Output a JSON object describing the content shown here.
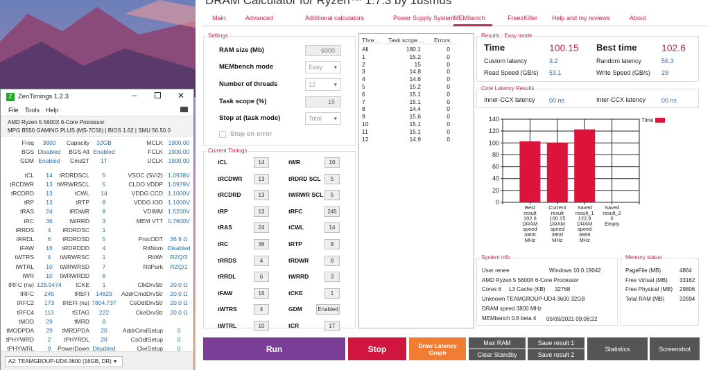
{
  "dram": {
    "title": "DRAM Calculator for Ryzen™ 1.7.3 by 1usmus",
    "tabs": [
      "Main",
      "Advanced",
      "Additional calculators",
      "Power Supply System",
      "MEMbench",
      "FreezKiller",
      "Help and my reviews",
      "About"
    ],
    "active_tab": "MEMbench",
    "settings": {
      "legend": "Settings",
      "ram_size_label": "RAM size (Mb)",
      "ram_size": "6000",
      "mode_label": "MEMbench mode",
      "mode": "Easy",
      "threads_label": "Number of threads",
      "threads": "12",
      "scope_label": "Task scope (%)",
      "scope": "15",
      "stop_label": "Stop at (task mode)",
      "stop": "Total",
      "stop_on_error": "Stop on error",
      "stop_on_error_checked": false
    },
    "timings": {
      "legend": "Current Timings",
      "left": [
        [
          "tCL",
          "14"
        ],
        [
          "tRCDWR",
          "13"
        ],
        [
          "tRCDRD",
          "13"
        ],
        [
          "tRP",
          "13"
        ],
        [
          "tRAS",
          "24"
        ],
        [
          "tRC",
          "36"
        ],
        [
          "tRRDS",
          "4"
        ],
        [
          "tRRDL",
          "6"
        ],
        [
          "tFAW",
          "16"
        ],
        [
          "tWTRS",
          "4"
        ],
        [
          "tWTRL",
          "10"
        ]
      ],
      "right": [
        [
          "tWR",
          "10"
        ],
        [
          "tRDRD SCL",
          "5"
        ],
        [
          "tWRWR SCL",
          "5"
        ],
        [
          "tRFC",
          "245"
        ],
        [
          "tCWL",
          "14"
        ],
        [
          "tRTP",
          "8"
        ],
        [
          "tRDWR",
          "8"
        ],
        [
          "tWRRD",
          "3"
        ],
        [
          "tCKE",
          "1"
        ],
        [
          "GDM",
          "Enabled"
        ],
        [
          "tCR",
          "1T"
        ]
      ]
    },
    "threads_table": {
      "headers": [
        "Thre...",
        "Task scope ...",
        "Errors"
      ],
      "rows": [
        [
          "All",
          "180.1",
          "0"
        ],
        [
          "1",
          "15.2",
          "0"
        ],
        [
          "2",
          "15",
          "0"
        ],
        [
          "3",
          "14.8",
          "0"
        ],
        [
          "4",
          "14.6",
          "0"
        ],
        [
          "5",
          "15.2",
          "0"
        ],
        [
          "6",
          "15.1",
          "0"
        ],
        [
          "7",
          "15.1",
          "0"
        ],
        [
          "8",
          "14.4",
          "0"
        ],
        [
          "9",
          "15.6",
          "0"
        ],
        [
          "10",
          "15.1",
          "0"
        ],
        [
          "11",
          "15.1",
          "0"
        ],
        [
          "12",
          "14.9",
          "0"
        ]
      ]
    },
    "results": {
      "legend": "Results : Easy mode",
      "time_label": "Time",
      "time": "100.15",
      "best_label": "Best time",
      "best": "102.6",
      "custom_label": "Custom latency",
      "custom": "3.2",
      "random_label": "Random latency",
      "random": "56.3",
      "read_label": "Read Speed (GB/s)",
      "read": "53.1",
      "write_label": "Write Speed (GB/s)",
      "write": "29"
    },
    "core": {
      "legend": "Core Latency Results",
      "inner_label": "Inner-CCX latency",
      "inner": "00 ns",
      "inter_label": "Inter-CCX latency",
      "inter": "00 ns"
    },
    "sysinfo": {
      "legend": "System info",
      "user": "User renee",
      "os": "Windows 10.0.19042",
      "cpu": "AMD Ryzen 5 5600X 6-Core Processor",
      "cores": "Cores 6",
      "l3_label": "L3 Cache (KB)",
      "l3": "32768",
      "mem": "Unknown TEAMGROUP-UD4-3600  32GB",
      "dram": "DRAM speed 3800 MHz",
      "ver": "MEMbench 0.8 beta 4",
      "date": "05/09/2021 09:08:22"
    },
    "memstatus": {
      "legend": "Memory status",
      "rows": [
        [
          "PageFile (MB)",
          "4864"
        ],
        [
          "Free Virtual (MB)",
          "33162"
        ],
        [
          "Free Physical (MB)",
          "29806"
        ],
        [
          "Total RAM (MB)",
          "32694"
        ]
      ]
    },
    "buttons": {
      "run": "Run",
      "stop": "Stop",
      "draw": "Draw Latency Graph",
      "maxram": "Max RAM",
      "clear": "Clear Standby",
      "save1": "Save result 1",
      "save2": "Save result 2",
      "stats": "Statistics",
      "screenshot": "Screenshot"
    },
    "colors": {
      "accent": "#c0274a",
      "run": "#7b3f98",
      "stop": "#d0153f",
      "draw": "#f07d32",
      "gray": "#555555",
      "bar": "#dc143c"
    }
  },
  "chart_data": {
    "type": "bar",
    "categories": [
      [
        "Best",
        "result",
        "102.6",
        "DRAM",
        "speed",
        "3800",
        "MHz"
      ],
      [
        "Current",
        "result",
        "100.15",
        "DRAM",
        "speed",
        "3800",
        "MHz"
      ],
      [
        "Saved",
        "result_1",
        "122.8",
        "DRAM",
        "speed",
        "3866",
        "MHz"
      ],
      [
        "Saved",
        "result_2",
        "0",
        "Empty"
      ]
    ],
    "values": [
      102.6,
      100.15,
      122.8,
      0
    ],
    "legend": "Time",
    "ylim": [
      0,
      140
    ],
    "yticks": [
      "0",
      "20",
      "40",
      "60",
      "80",
      "100",
      "120",
      "140"
    ],
    "grid": true
  },
  "zen": {
    "title": "ZenTimings 1.2.3",
    "menu": [
      "File",
      "Tools",
      "Help"
    ],
    "cpu": "AMD Ryzen 5 5600X 6-Core Processor",
    "board": "MPG B550 GAMING PLUS (MS-7C56) | BIOS 1.62 | SMU 56.50.0",
    "rows": [
      [
        "Freq",
        "3800",
        "Capacity",
        "32GB",
        "MCLK",
        "1900.00"
      ],
      [
        "BGS",
        "Disabled",
        "BGS Alt",
        "Enabled",
        "FCLK",
        "1900.00"
      ],
      [
        "GDM",
        "Enabled",
        "Cmd2T",
        "1T",
        "UCLK",
        "1900.00"
      ],
      null,
      [
        "tCL",
        "14",
        "tRDRDSCL",
        "5",
        "VSOC (SVI2)",
        "1.0938V"
      ],
      [
        "tRCDWR",
        "13",
        "tWRWRSCL",
        "5",
        "CLDO VDDP",
        "1.0979V"
      ],
      [
        "tRCDRD",
        "13",
        "tCWL",
        "14",
        "VDDG CCD",
        "1.1000V"
      ],
      [
        "tRP",
        "13",
        "tRTP",
        "8",
        "VDDG IOD",
        "1.1000V"
      ],
      [
        "tRAS",
        "24",
        "tRDWR",
        "8",
        "VDIMM",
        "1.5200V"
      ],
      [
        "tRC",
        "36",
        "tWRRD",
        "3",
        "MEM VTT",
        "0.7600V"
      ],
      [
        "tRRDS",
        "4",
        "tRDRDSC",
        "1",
        "",
        ""
      ],
      [
        "tRRDL",
        "6",
        "tRDRDSD",
        "5",
        "ProcODT",
        "36.9 Ω"
      ],
      [
        "tFAW",
        "16",
        "tRDRDDD",
        "4",
        "RttNom",
        "Disabled"
      ],
      [
        "tWTRS",
        "4",
        "tWRWRSC",
        "1",
        "RttWr",
        "RZQ/3"
      ],
      [
        "tWTRL",
        "10",
        "tWRWRSD",
        "7",
        "RttPark",
        "RZQ/1"
      ],
      [
        "tWR",
        "10",
        "tWRWRDD",
        "6",
        "",
        ""
      ],
      [
        "tRFC (ns)",
        "128.9474",
        "tCKE",
        "1",
        "ClkDrvStr",
        "20.0 Ω"
      ],
      [
        "tRFC",
        "245",
        "tREFI",
        "14829",
        "AddrCmdDrvStr",
        "20.0 Ω"
      ],
      [
        "tRFC2",
        "173",
        "tREFI (ns)",
        "7804.737",
        "CsOdtDrvStr",
        "20.0 Ω"
      ],
      [
        "tRFC4",
        "113",
        "tSTAG",
        "222",
        "CkeDrvStr",
        "20.0 Ω"
      ],
      [
        "tMOD",
        "29",
        "tMRD",
        "8",
        "",
        ""
      ],
      [
        "tMODPDA",
        "29",
        "tMRDPDA",
        "20",
        "AddrCmdSetup",
        "0"
      ],
      [
        "tPHYWRD",
        "2",
        "tPHYRDL",
        "28",
        "CsOdtSetup",
        "0"
      ],
      [
        "tPHYWRL",
        "9",
        "PowerDown",
        "Disabled",
        "CkeSetup",
        "0"
      ]
    ],
    "dimm": "A2: TEAMGROUP-UD4-3600 (16GB, DR)"
  }
}
